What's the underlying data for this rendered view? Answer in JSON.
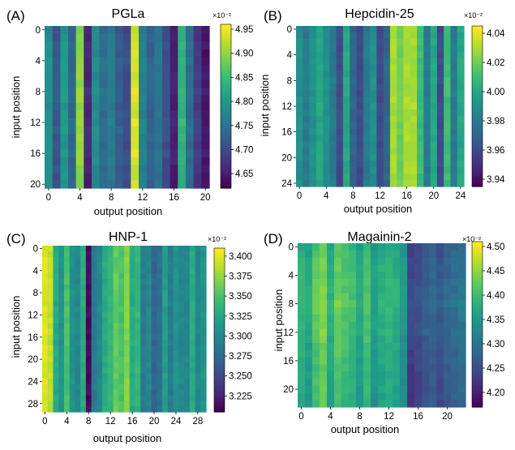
{
  "chart_data": [
    {
      "type": "heatmap",
      "panel_label": "(A)",
      "title": "PGLa",
      "xlabel": "output position",
      "ylabel": "input position",
      "n": 21,
      "xticks": [
        "0",
        "4",
        "8",
        "12",
        "16",
        "20"
      ],
      "yticks": [
        "0",
        "4",
        "8",
        "12",
        "16",
        "20"
      ],
      "scale_label": "×10⁻²",
      "vmin": 4.62,
      "vmax": 4.96,
      "colorbar_ticks": [
        "4.65",
        "4.70",
        "4.75",
        "4.80",
        "4.85",
        "4.90",
        "4.95"
      ],
      "column_profile": [
        4.79,
        4.71,
        4.8,
        4.73,
        4.9,
        4.66,
        4.78,
        4.74,
        4.76,
        4.72,
        4.7,
        4.94,
        4.77,
        4.73,
        4.75,
        4.7,
        4.65,
        4.84,
        4.74,
        4.68,
        4.64
      ],
      "row_profile": [
        -0.03,
        -0.01,
        0.0,
        -0.01,
        0.02,
        0.01,
        0.0,
        0.01,
        0.03,
        0.02,
        0.0,
        -0.01,
        0.02,
        0.03,
        0.01,
        -0.01,
        0.02,
        0.0,
        -0.02,
        -0.03,
        -0.04
      ]
    },
    {
      "type": "heatmap",
      "panel_label": "(B)",
      "title": "Hepcidin-25",
      "xlabel": "output position",
      "ylabel": "input position",
      "n": 25,
      "xticks": [
        "0",
        "4",
        "8",
        "12",
        "16",
        "20",
        "24"
      ],
      "yticks": [
        "0",
        "4",
        "8",
        "12",
        "16",
        "20",
        "24"
      ],
      "scale_label": "×10⁻²",
      "vmin": 3.935,
      "vmax": 4.045,
      "colorbar_ticks": [
        "3.94",
        "3.96",
        "3.98",
        "4.00",
        "4.02",
        "4.04"
      ],
      "column_profile": [
        3.99,
        3.98,
        3.99,
        4.0,
        3.99,
        3.98,
        3.96,
        4.0,
        3.97,
        3.96,
        3.98,
        3.99,
        3.96,
        3.97,
        4.03,
        4.02,
        4.03,
        4.03,
        4.01,
        3.98,
        4.0,
        3.96,
        4.01,
        3.98,
        4.0
      ],
      "row_profile": [
        -0.004,
        -0.002,
        0.0,
        0.001,
        0.002,
        0.003,
        0.005,
        0.006,
        0.008,
        0.007,
        0.006,
        0.008,
        0.007,
        0.006,
        0.005,
        0.004,
        0.003,
        0.002,
        0.001,
        0.0,
        0.001,
        -0.001,
        -0.002,
        -0.003,
        -0.004
      ]
    },
    {
      "type": "heatmap",
      "panel_label": "(C)",
      "title": "HNP-1",
      "xlabel": "output position",
      "ylabel": "input position",
      "n": 30,
      "xticks": [
        "0",
        "4",
        "8",
        "12",
        "16",
        "20",
        "24",
        "28"
      ],
      "yticks": [
        "0",
        "4",
        "8",
        "12",
        "16",
        "20",
        "24",
        "28"
      ],
      "scale_label": "×10⁻²",
      "vmin": 3.205,
      "vmax": 3.41,
      "colorbar_ticks": [
        "3.225",
        "3.250",
        "3.275",
        "3.300",
        "3.325",
        "3.350",
        "3.375",
        "3.400"
      ],
      "column_profile": [
        3.4,
        3.39,
        3.33,
        3.31,
        3.35,
        3.31,
        3.3,
        3.33,
        3.21,
        3.29,
        3.3,
        3.33,
        3.34,
        3.36,
        3.35,
        3.37,
        3.33,
        3.34,
        3.29,
        3.3,
        3.27,
        3.28,
        3.32,
        3.29,
        3.31,
        3.3,
        3.3,
        3.33,
        3.3,
        3.31
      ],
      "row_profile": [
        0.004,
        0.002,
        0.0,
        0.003,
        0.001,
        -0.001,
        0.002,
        0.0,
        0.003,
        0.001,
        -0.002,
        0.002,
        0.0,
        0.001,
        -0.001,
        0.002,
        0.0,
        -0.002,
        0.001,
        0.0,
        0.002,
        -0.001,
        0.001,
        0.0,
        -0.001,
        0.001,
        0.0,
        -0.002,
        0.001,
        0.0
      ]
    },
    {
      "type": "heatmap",
      "panel_label": "(D)",
      "title": "Magainin-2",
      "xlabel": "output position",
      "ylabel": "input position",
      "n": 23,
      "xticks": [
        "0",
        "4",
        "8",
        "12",
        "16",
        "20"
      ],
      "yticks": [
        "0",
        "4",
        "8",
        "12",
        "16",
        "20"
      ],
      "scale_label": "×10⁻²",
      "vmin": 4.17,
      "vmax": 4.51,
      "colorbar_ticks": [
        "4.20",
        "4.25",
        "4.30",
        "4.35",
        "4.40",
        "4.45",
        "4.50"
      ],
      "column_profile": [
        4.38,
        4.36,
        4.41,
        4.43,
        4.37,
        4.42,
        4.4,
        4.39,
        4.36,
        4.4,
        4.35,
        4.37,
        4.38,
        4.37,
        4.34,
        4.23,
        4.24,
        4.26,
        4.27,
        4.25,
        4.27,
        4.28,
        4.29
      ],
      "row_profile": [
        0.0,
        0.02,
        0.04,
        0.06,
        0.05,
        0.07,
        0.08,
        0.09,
        0.1,
        0.08,
        0.07,
        0.05,
        0.06,
        0.03,
        0.02,
        0.01,
        0.0,
        -0.01,
        -0.02,
        -0.02,
        -0.03,
        -0.03,
        -0.03
      ]
    }
  ]
}
